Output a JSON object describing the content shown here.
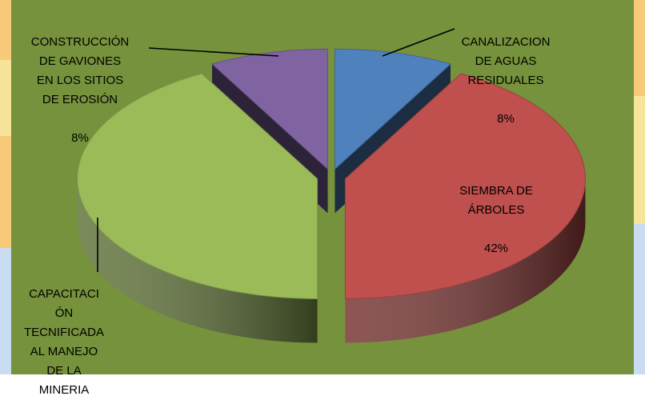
{
  "colors": {
    "plot_bg": "#76923C",
    "stripe_orange": "#F9C97A",
    "stripe_yellow": "#F7E39A",
    "stripe_blue": "#C9DDF2"
  },
  "chart_data": {
    "type": "pie",
    "style": "3d-exploded",
    "title": "",
    "legend": "none",
    "slices": [
      {
        "label": "CANALIZACION\nDE AGUAS\nRESIDUALES",
        "value": 8,
        "display": "8%",
        "color": "#4F81BD"
      },
      {
        "label": "SIEMBRA DE\nÁRBOLES",
        "value": 42,
        "display": "42%",
        "color": "#C0504D"
      },
      {
        "label": "CAPACITACI\nÓN\nTECNIFICADA\nAL MANEJO\nDE LA\nMINERIA",
        "value": 42,
        "display": "42%",
        "color": "#9BBB59"
      },
      {
        "label": "CONSTRUCCIÓN\nDE GAVIONES\nEN LOS SITIOS\nDE EROSIÓN",
        "value": 8,
        "display": "8%",
        "color": "#8064A2"
      }
    ]
  }
}
